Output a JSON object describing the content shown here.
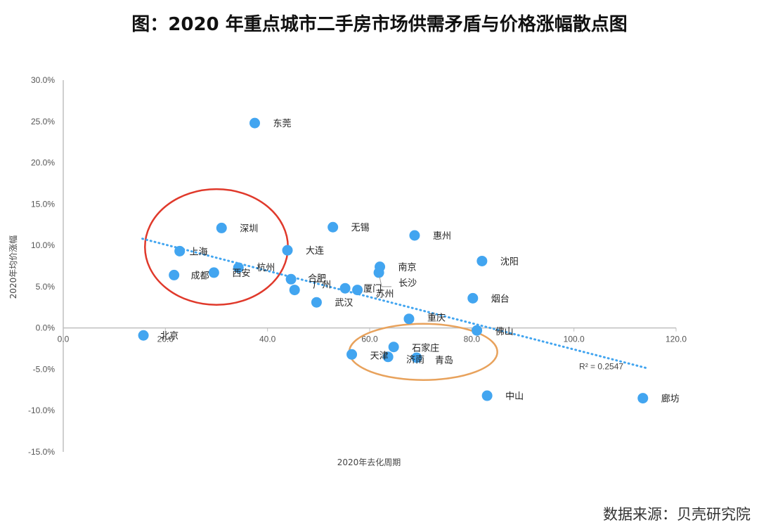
{
  "title": "图：2020 年重点城市二手房市场供需矛盾与价格涨幅散点图",
  "source": "数据来源：贝壳研究院",
  "chart_data": {
    "type": "scatter",
    "xlabel": "2020年去化周期",
    "ylabel": "2020年均价涨幅",
    "xlim": [
      0,
      120
    ],
    "ylim": [
      -15,
      30
    ],
    "x_ticks": [
      "0.0",
      "20.0",
      "40.0",
      "60.0",
      "80.0",
      "100.0",
      "120.0"
    ],
    "y_ticks": [
      "30.0%",
      "25.0%",
      "20.0%",
      "15.0%",
      "10.0%",
      "5.0%",
      "0.0%",
      "-5.0%",
      "-10.0%",
      "-15.0%"
    ],
    "point_color": "#42a5f0",
    "points": [
      {
        "label": "东莞",
        "x": 37.5,
        "y": 24.8
      },
      {
        "label": "深圳",
        "x": 31.0,
        "y": 12.1
      },
      {
        "label": "无锡",
        "x": 52.8,
        "y": 12.2
      },
      {
        "label": "惠州",
        "x": 68.8,
        "y": 11.2
      },
      {
        "label": "上海",
        "x": 22.8,
        "y": 9.3
      },
      {
        "label": "大连",
        "x": 43.9,
        "y": 9.4
      },
      {
        "label": "沈阳",
        "x": 82.0,
        "y": 8.1
      },
      {
        "label": "南京",
        "x": 62.0,
        "y": 7.4
      },
      {
        "label": "杭州",
        "x": 34.3,
        "y": 7.3
      },
      {
        "label": "长沙",
        "x": 61.8,
        "y": 6.7
      },
      {
        "label": "西安",
        "x": 29.5,
        "y": 6.7
      },
      {
        "label": "成都",
        "x": 21.7,
        "y": 6.4
      },
      {
        "label": "合肥",
        "x": 44.6,
        "y": 5.9
      },
      {
        "label": "广州",
        "x": 45.3,
        "y": 4.6
      },
      {
        "label": "厦门",
        "x": 55.2,
        "y": 4.8
      },
      {
        "label": "苏州",
        "x": 57.6,
        "y": 4.6
      },
      {
        "label": "烟台",
        "x": 80.2,
        "y": 3.6
      },
      {
        "label": "武汉",
        "x": 49.6,
        "y": 3.1
      },
      {
        "label": "重庆",
        "x": 67.7,
        "y": 1.1
      },
      {
        "label": "佛山",
        "x": 81.0,
        "y": -0.3
      },
      {
        "label": "北京",
        "x": 15.7,
        "y": -0.9
      },
      {
        "label": "石家庄",
        "x": 64.7,
        "y": -2.3
      },
      {
        "label": "天津",
        "x": 56.5,
        "y": -3.2
      },
      {
        "label": "济南",
        "x": 63.6,
        "y": -3.5
      },
      {
        "label": "青岛",
        "x": 69.2,
        "y": -3.6
      },
      {
        "label": "中山",
        "x": 83.0,
        "y": -8.2
      },
      {
        "label": "廊坊",
        "x": 113.5,
        "y": -8.5
      }
    ],
    "trendline": {
      "label": "R² = 0.2547",
      "color": "#42a5f0",
      "from": [
        15.5,
        10.8
      ],
      "to": [
        114.5,
        -4.9
      ]
    },
    "highlights": [
      {
        "color": "#e0392b",
        "cx": 30.0,
        "cy": 9.8,
        "rx": 14.0,
        "ry": 7.0
      },
      {
        "color": "#e8a25c",
        "cx": 70.5,
        "cy": -2.9,
        "rx": 14.5,
        "ry": 3.4
      }
    ]
  }
}
